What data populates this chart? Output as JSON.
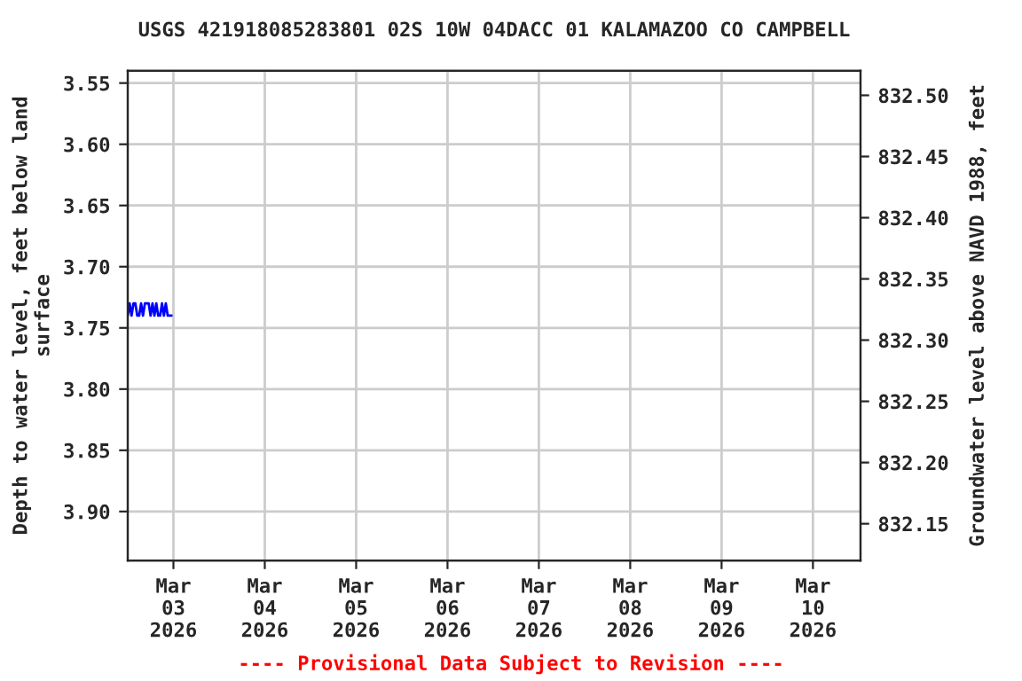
{
  "chart_data": {
    "type": "line",
    "title": "USGS 421918085283801 02S 10W 04DACC 01 KALAMAZOO CO CAMPBELL",
    "ylabel": "Depth to water level, feet below land\nsurface",
    "y2label": "Groundwater level above NAVD 1988, feet",
    "annotations": [
      "---- Provisional Data Subject to Revision ----"
    ],
    "x": [
      "2026-03-02T12:00",
      "2026-03-02T12:30",
      "2026-03-02T13:00",
      "2026-03-02T13:30",
      "2026-03-02T14:00",
      "2026-03-02T14:30",
      "2026-03-02T15:00",
      "2026-03-02T15:30",
      "2026-03-02T16:00",
      "2026-03-02T16:30",
      "2026-03-02T17:00",
      "2026-03-02T17:30",
      "2026-03-02T18:00",
      "2026-03-02T18:30",
      "2026-03-02T19:00",
      "2026-03-02T19:30",
      "2026-03-02T20:00",
      "2026-03-02T20:30",
      "2026-03-02T21:00",
      "2026-03-02T21:30",
      "2026-03-02T22:00",
      "2026-03-02T22:30",
      "2026-03-02T23:00",
      "2026-03-02T23:30"
    ],
    "series": [
      {
        "color": "#0000ff",
        "values": [
          3.74,
          3.73,
          3.74,
          3.73,
          3.73,
          3.74,
          3.74,
          3.73,
          3.74,
          3.73,
          3.73,
          3.73,
          3.74,
          3.73,
          3.74,
          3.73,
          3.74,
          3.74,
          3.73,
          3.74,
          3.73,
          3.74,
          3.74,
          3.74
        ]
      }
    ],
    "xlim": [
      "2026-03-02T12:00",
      "2026-03-10T12:30"
    ],
    "xticks": [
      {
        "value": "2026-03-03",
        "label": "Mar\n03\n2026"
      },
      {
        "value": "2026-03-04",
        "label": "Mar\n04\n2026"
      },
      {
        "value": "2026-03-05",
        "label": "Mar\n05\n2026"
      },
      {
        "value": "2026-03-06",
        "label": "Mar\n06\n2026"
      },
      {
        "value": "2026-03-07",
        "label": "Mar\n07\n2026"
      },
      {
        "value": "2026-03-08",
        "label": "Mar\n08\n2026"
      },
      {
        "value": "2026-03-09",
        "label": "Mar\n09\n2026"
      },
      {
        "value": "2026-03-10",
        "label": "Mar\n10\n2026"
      }
    ],
    "ylim": [
      3.94,
      3.54
    ],
    "yticks": [
      {
        "value": 3.55,
        "label": "3.55"
      },
      {
        "value": 3.6,
        "label": "3.60"
      },
      {
        "value": 3.65,
        "label": "3.65"
      },
      {
        "value": 3.7,
        "label": "3.70"
      },
      {
        "value": 3.75,
        "label": "3.75"
      },
      {
        "value": 3.8,
        "label": "3.80"
      },
      {
        "value": 3.85,
        "label": "3.85"
      },
      {
        "value": 3.9,
        "label": "3.90"
      }
    ],
    "y2lim": [
      832.12,
      832.52
    ],
    "y2ticks": [
      {
        "value": 832.15,
        "label": "832.15"
      },
      {
        "value": 832.2,
        "label": "832.20"
      },
      {
        "value": 832.25,
        "label": "832.25"
      },
      {
        "value": 832.3,
        "label": "832.30"
      },
      {
        "value": 832.35,
        "label": "832.35"
      },
      {
        "value": 832.4,
        "label": "832.40"
      },
      {
        "value": 832.45,
        "label": "832.45"
      },
      {
        "value": 832.5,
        "label": "832.50"
      }
    ],
    "grid": true,
    "line_style": "solid"
  }
}
